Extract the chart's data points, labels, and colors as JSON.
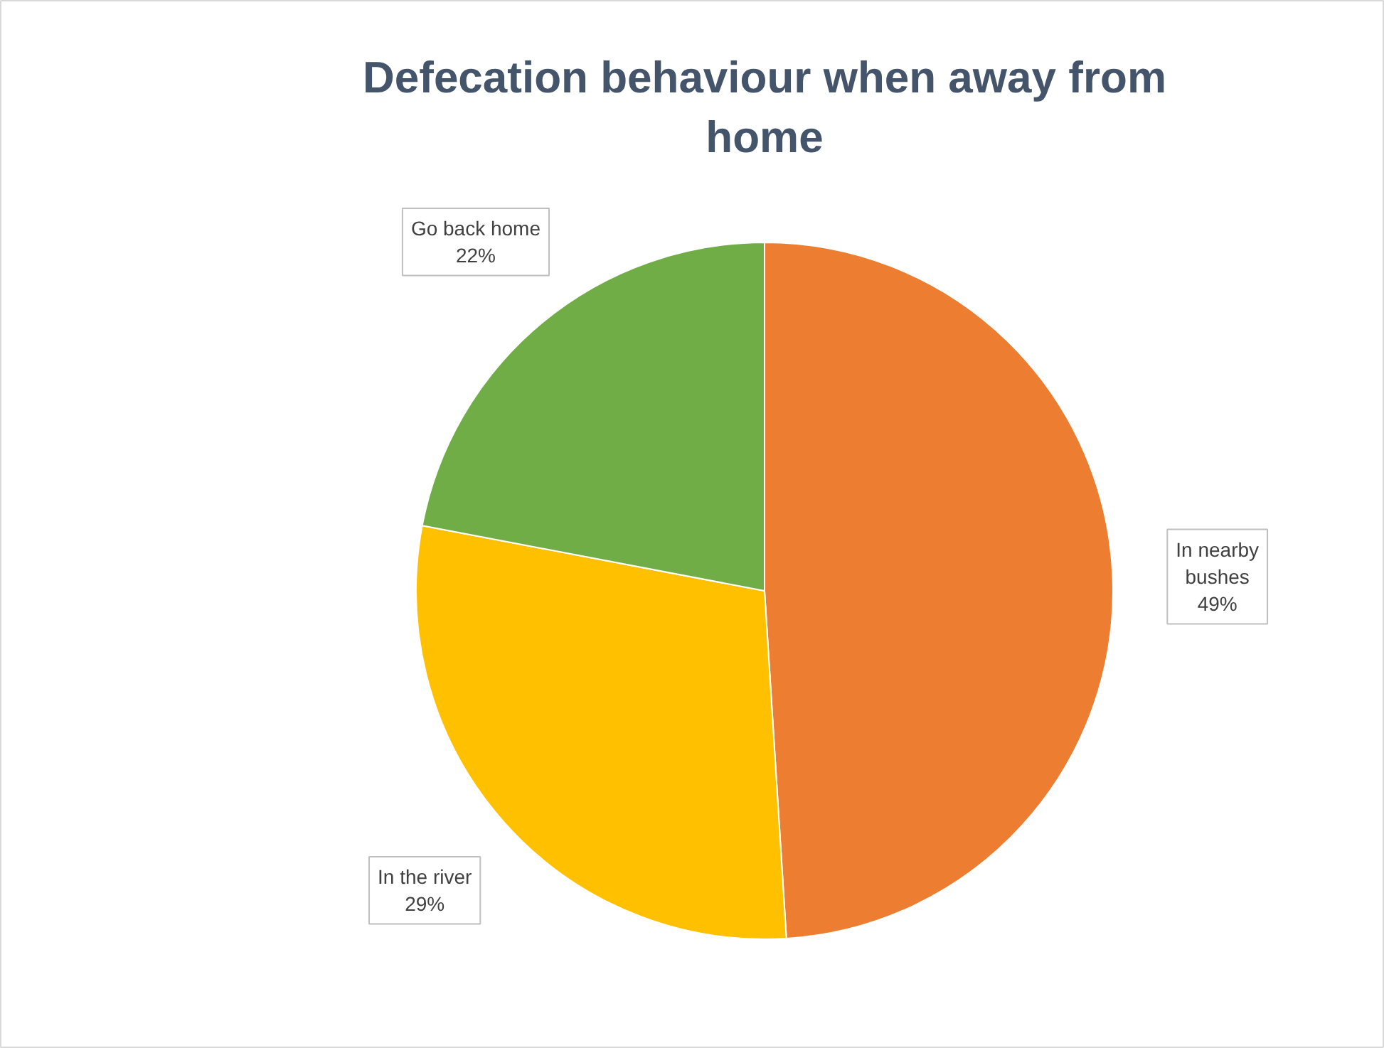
{
  "chart_data": {
    "type": "pie",
    "title": "Defecation behaviour when away from home",
    "categories": [
      "In nearby bushes",
      "In the river",
      "Go back home"
    ],
    "values": [
      49,
      29,
      22
    ],
    "colors": [
      "#ed7d31",
      "#ffc000",
      "#70ad47"
    ],
    "value_labels": [
      "49%",
      "29%",
      "22%"
    ]
  }
}
